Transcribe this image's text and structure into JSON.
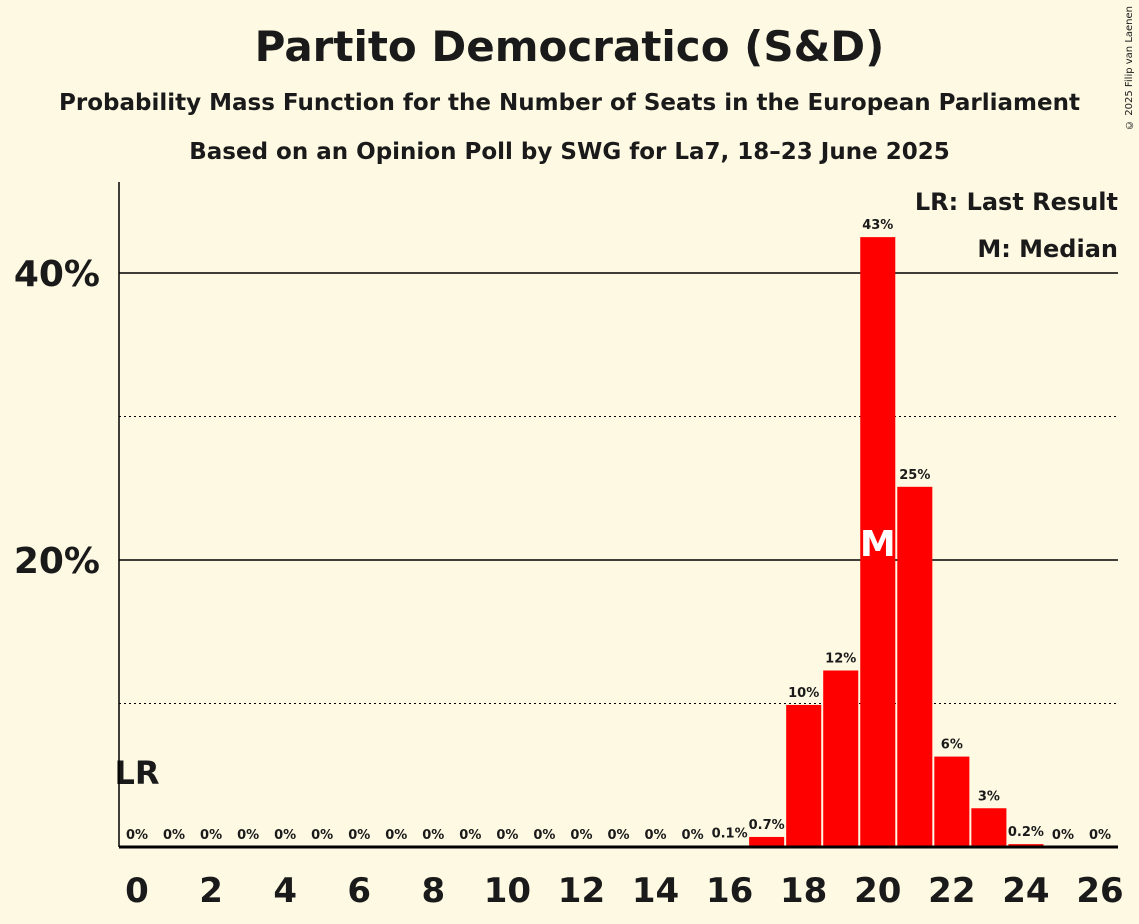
{
  "chart_data": {
    "type": "bar",
    "title": "Partito Democratico (S&D)",
    "subtitle": "Probability Mass Function for the Number of Seats in the European Parliament",
    "subtitle2": "Based on an Opinion Poll by SWG for La7, 18–23 June 2025",
    "copyright": "© 2025 Filip van Laenen",
    "xlabel": "",
    "ylabel": "",
    "x": [
      0,
      1,
      2,
      3,
      4,
      5,
      6,
      7,
      8,
      9,
      10,
      11,
      12,
      13,
      14,
      15,
      16,
      17,
      18,
      19,
      20,
      21,
      22,
      23,
      24,
      25,
      26
    ],
    "values": [
      0,
      0,
      0,
      0,
      0,
      0,
      0,
      0,
      0,
      0,
      0,
      0,
      0,
      0,
      0,
      0,
      0.1,
      0.7,
      9.9,
      12.3,
      42.5,
      25.1,
      6.3,
      2.7,
      0.2,
      0,
      0
    ],
    "labels": [
      "0%",
      "0%",
      "0%",
      "0%",
      "0%",
      "0%",
      "0%",
      "0%",
      "0%",
      "0%",
      "0%",
      "0%",
      "0%",
      "0%",
      "0%",
      "0%",
      "0.1%",
      "0.7%",
      "10%",
      "12%",
      "43%",
      "25%",
      "6%",
      "3%",
      "0.2%",
      "0%",
      "0%"
    ],
    "xticks": [
      0,
      2,
      4,
      6,
      8,
      10,
      12,
      14,
      16,
      18,
      20,
      22,
      24,
      26
    ],
    "yticks": [
      {
        "value": 20,
        "label": "20%"
      },
      {
        "value": 40,
        "label": "40%"
      }
    ],
    "minor_gridlines": [
      10,
      30
    ],
    "ylim": [
      0,
      46
    ],
    "last_result": 0,
    "last_result_label": "LR",
    "median": 20,
    "median_label": "M",
    "legend": [
      "LR: Last Result",
      "M: Median"
    ],
    "legend_position": "top-right",
    "bar_color": "#ff0000"
  }
}
